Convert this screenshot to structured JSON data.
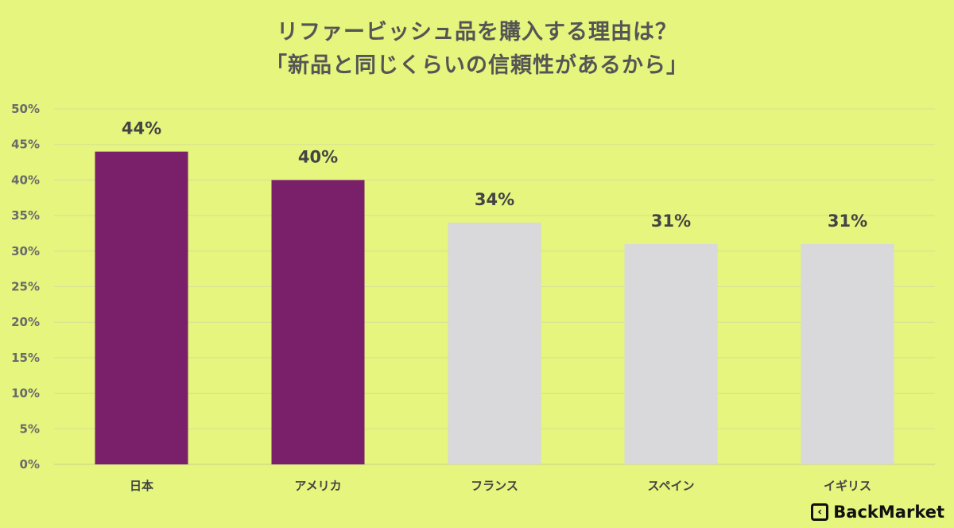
{
  "chart_data": {
    "type": "bar",
    "title": "リファービッシュ品を購入する理由は？",
    "subtitle": "「新品と同じくらいの信頼性があるから」",
    "xlabel": "",
    "ylabel": "",
    "categories": [
      "日本",
      "アメリカ",
      "フランス",
      "スペイン",
      "イギリス"
    ],
    "values": [
      44,
      40,
      34,
      31,
      31
    ],
    "data_labels": [
      "44%",
      "40%",
      "34%",
      "31%",
      "31%"
    ],
    "bar_colors": [
      "#7a1f6a",
      "#7a1f6a",
      "#d9d8da",
      "#d9d8da",
      "#d9d8da"
    ],
    "ylim": [
      0,
      50
    ],
    "yticks": [
      0,
      5,
      10,
      15,
      20,
      25,
      30,
      35,
      40,
      45,
      50
    ],
    "ytick_labels": [
      "0%",
      "5%",
      "10%",
      "15%",
      "20%",
      "25%",
      "30%",
      "35%",
      "40%",
      "45%",
      "50%"
    ],
    "grid": true,
    "background": "#e5f57d",
    "gridline_color": "#d8df95"
  },
  "brand": {
    "logo_icon": "back-market-logo-icon",
    "name": "BackMarket"
  }
}
